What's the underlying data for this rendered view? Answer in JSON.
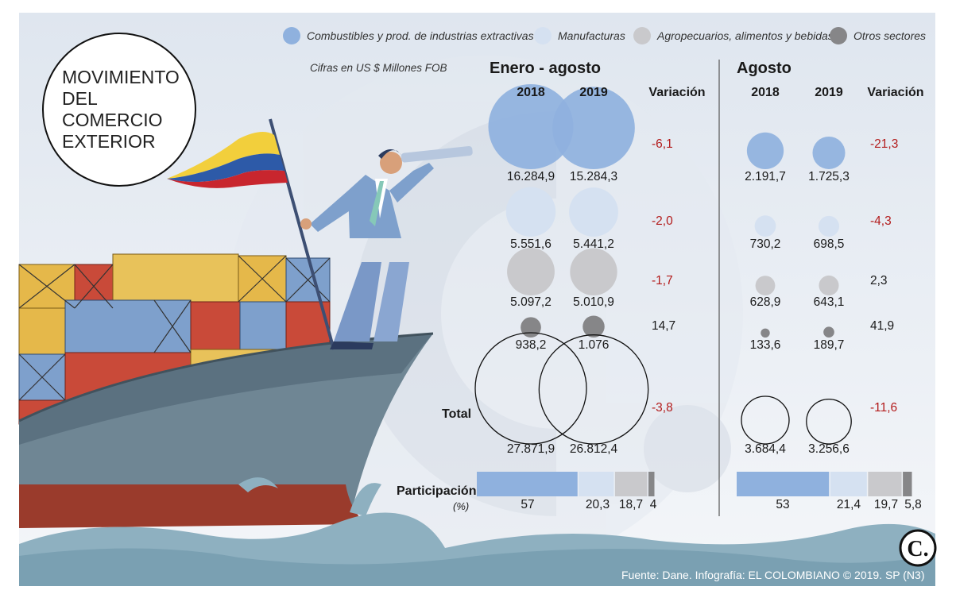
{
  "title": "MOVIMIENTO DEL COMERCIO EXTERIOR",
  "units": "Cifras en US $ Millones FOB",
  "legend": [
    {
      "label": "Combustibles y prod. de industrias extractivas",
      "color": "#8fb1de"
    },
    {
      "label": "Manufacturas",
      "color": "#d5e1f1"
    },
    {
      "label": "Agropecuarios, alimentos y bebidas",
      "color": "#c9c9cc"
    },
    {
      "label": "Otros sectores",
      "color": "#868688"
    }
  ],
  "sections": [
    {
      "title": "Enero - agosto",
      "col_2018": "2018",
      "col_2019": "2019",
      "col_var": "Variación"
    },
    {
      "title": "Agosto",
      "col_2018": "2018",
      "col_2019": "2019",
      "col_var": "Variación"
    }
  ],
  "total_label": "Total",
  "participation_label": "Participación",
  "participation_unit": "(%)",
  "source": "Fuente: Dane. Infografía: EL COLOMBIANO © 2019. SP (N3)",
  "chart_data": [
    {
      "type": "bubble",
      "title": "Enero - agosto",
      "categories": [
        "Combustibles y prod. de industrias extractivas",
        "Manufacturas",
        "Agropecuarios, alimentos y bebidas",
        "Otros sectores"
      ],
      "series": [
        {
          "name": "2018",
          "values": [
            "16.284,9",
            "5.551,6",
            "5.097,2",
            "938,2"
          ],
          "numeric": [
            16284.9,
            5551.6,
            5097.2,
            938.2
          ]
        },
        {
          "name": "2019",
          "values": [
            "15.284,3",
            "5.441,2",
            "5.010,9",
            "1.076"
          ],
          "numeric": [
            15284.3,
            5441.2,
            5010.9,
            1076
          ]
        }
      ],
      "variation": [
        "-6,1",
        "-2,0",
        "-1,7",
        "14,7"
      ],
      "total": [
        "27.871,9",
        "26.812,4"
      ],
      "total_numeric": [
        27871.9,
        26812.4
      ],
      "total_variation": "-3,8",
      "participation": [
        "57",
        "20,3",
        "18,7",
        "4"
      ],
      "participation_numeric": [
        57,
        20.3,
        18.7,
        4
      ]
    },
    {
      "type": "bubble",
      "title": "Agosto",
      "categories": [
        "Combustibles y prod. de industrias extractivas",
        "Manufacturas",
        "Agropecuarios, alimentos y bebidas",
        "Otros sectores"
      ],
      "series": [
        {
          "name": "2018",
          "values": [
            "2.191,7",
            "730,2",
            "628,9",
            "133,6"
          ],
          "numeric": [
            2191.7,
            730.2,
            628.9,
            133.6
          ]
        },
        {
          "name": "2019",
          "values": [
            "1.725,3",
            "698,5",
            "643,1",
            "189,7"
          ],
          "numeric": [
            1725.3,
            698.5,
            643.1,
            189.7
          ]
        }
      ],
      "variation": [
        "-21,3",
        "-4,3",
        "2,3",
        "41,9"
      ],
      "total": [
        "3.684,4",
        "3.256,6"
      ],
      "total_numeric": [
        3684.4,
        3256.6
      ],
      "total_variation": "-11,6",
      "participation": [
        "53",
        "21,4",
        "19,7",
        "5,8"
      ],
      "participation_numeric": [
        53,
        21.4,
        19.7,
        5.8
      ]
    }
  ]
}
